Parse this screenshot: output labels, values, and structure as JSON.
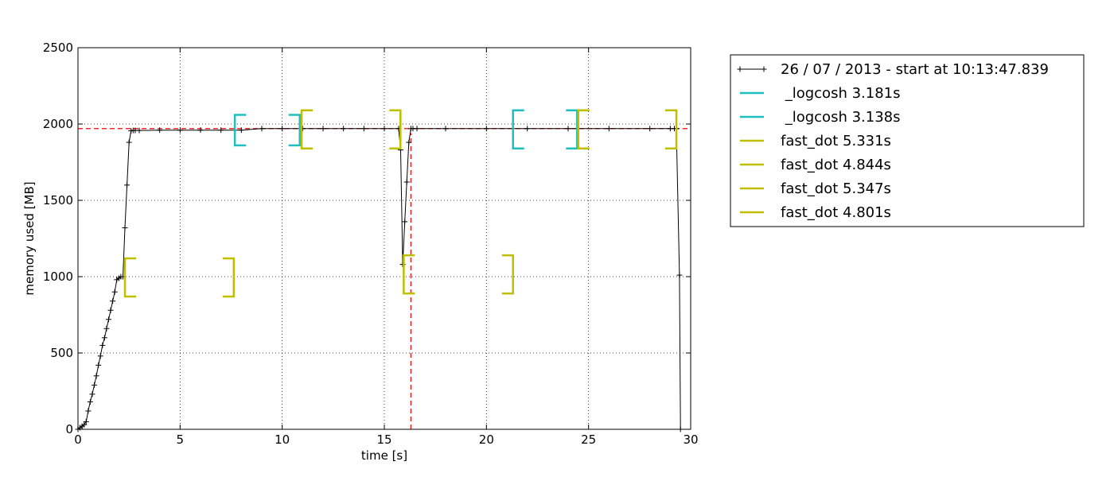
{
  "chart_data": {
    "type": "line",
    "xlabel": "time [s]",
    "ylabel": "memory used [MB]",
    "xlim": [
      0,
      30
    ],
    "ylim": [
      0,
      2500
    ],
    "xticks": [
      0,
      5,
      10,
      15,
      20,
      25,
      30
    ],
    "yticks": [
      0,
      500,
      1000,
      1500,
      2000,
      2500
    ],
    "grid": true,
    "legend_position": "outside-right",
    "series": [
      {
        "name": "26 / 07 / 2013 - start at 10:13:47.839",
        "color": "#000000",
        "marker": "+",
        "x": [
          0.0,
          0.1,
          0.2,
          0.3,
          0.4,
          0.5,
          0.6,
          0.7,
          0.8,
          0.9,
          1.0,
          1.1,
          1.2,
          1.3,
          1.4,
          1.5,
          1.6,
          1.7,
          1.8,
          1.9,
          2.0,
          2.1,
          2.2,
          2.3,
          2.4,
          2.5,
          2.6,
          2.7,
          2.8,
          3.0,
          4.0,
          5.0,
          6.0,
          7.0,
          8.0,
          9.0,
          10.0,
          11.0,
          12.0,
          13.0,
          14.0,
          15.0,
          15.7,
          15.8,
          15.9,
          16.0,
          16.1,
          16.2,
          16.3,
          16.4,
          16.6,
          18.0,
          20.0,
          22.0,
          24.0,
          26.0,
          28.0,
          29.0,
          29.2,
          29.3,
          29.45,
          29.5
        ],
        "y": [
          0,
          10,
          20,
          30,
          50,
          120,
          180,
          230,
          290,
          350,
          420,
          480,
          550,
          600,
          660,
          720,
          780,
          840,
          900,
          980,
          990,
          1000,
          1000,
          1320,
          1600,
          1880,
          1955,
          1958,
          1958,
          1958,
          1960,
          1960,
          1960,
          1960,
          1960,
          1970,
          1970,
          1970,
          1970,
          1970,
          1970,
          1970,
          1970,
          1830,
          1080,
          1360,
          1620,
          1880,
          1970,
          1970,
          1970,
          1970,
          1970,
          1970,
          1970,
          1970,
          1970,
          1970,
          1970,
          1970,
          1010,
          0
        ]
      }
    ],
    "intervals": [
      {
        "name": " _logcosh 3.181s",
        "color": "#1fbfbf",
        "start": 7.68,
        "end": 10.86,
        "ymin": 1860,
        "ymax": 2060
      },
      {
        "name": " _logcosh 3.138s",
        "color": "#1fbfbf",
        "start": 21.3,
        "end": 24.44,
        "ymin": 1840,
        "ymax": 2090
      },
      {
        "name": "fast_dot 5.331s",
        "color": "#bfbf00",
        "start": 2.3,
        "end": 7.63,
        "ymin": 870,
        "ymax": 1120
      },
      {
        "name": "fast_dot 4.844s",
        "color": "#bfbf00",
        "start": 10.95,
        "end": 15.79,
        "ymin": 1840,
        "ymax": 2090
      },
      {
        "name": "fast_dot 5.347s",
        "color": "#bfbf00",
        "start": 15.95,
        "end": 21.3,
        "ymin": 890,
        "ymax": 1140
      },
      {
        "name": "fast_dot 4.801s",
        "color": "#bfbf00",
        "start": 24.5,
        "end": 29.3,
        "ymin": 1840,
        "ymax": 2090
      }
    ],
    "reference_lines": [
      {
        "orientation": "horizontal",
        "value": 1970,
        "color": "#ff0000",
        "style": "dashed"
      },
      {
        "orientation": "vertical",
        "value": 16.3,
        "color": "#ff0000",
        "style": "dashed"
      }
    ]
  }
}
